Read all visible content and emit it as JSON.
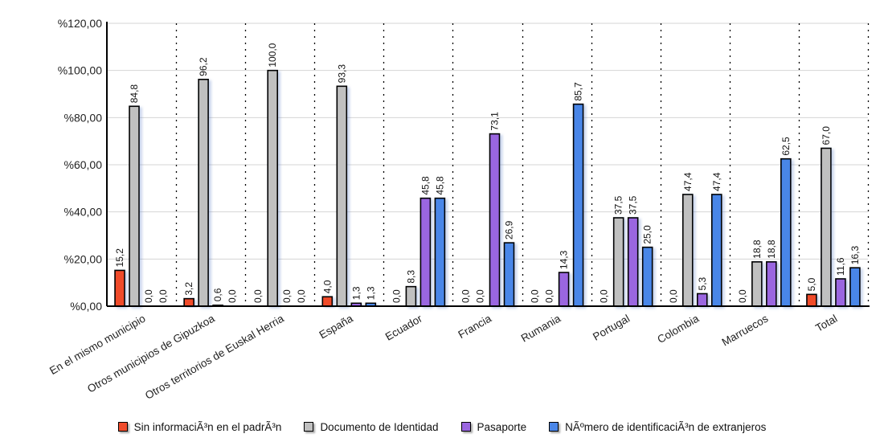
{
  "chart_data": {
    "type": "bar",
    "title": "",
    "xlabel": "",
    "ylabel": "",
    "ylim": [
      0,
      120
    ],
    "yticks": [
      "%0,00",
      "%20,00",
      "%40,00",
      "%60,00",
      "%80,00",
      "%100,00",
      "%120,00"
    ],
    "grid": true,
    "legend_position": "right",
    "categories": [
      "En el mismo municipio",
      "Otros municipios de Gipuzkoa",
      "Otros territorios de Euskal Herria",
      "España",
      "Ecuador",
      "Francia",
      "Rumania",
      "Portugal",
      "Colombia",
      "Marruecos",
      "Total"
    ],
    "series": [
      {
        "name": "Sin informaciÃ³n en el padrÃ³n",
        "color": "#f04c2c",
        "values": [
          15.2,
          3.2,
          0.0,
          4.0,
          0.0,
          0.0,
          0.0,
          0.0,
          0.0,
          0.0,
          5.0
        ]
      },
      {
        "name": "Documento de Identidad",
        "color": "#c0c0c0",
        "values": [
          84.8,
          96.2,
          100.0,
          93.3,
          8.3,
          0.0,
          0.0,
          37.5,
          47.4,
          18.8,
          67.0
        ]
      },
      {
        "name": "Pasaporte",
        "color": "#9a66e0",
        "values": [
          0.0,
          0.6,
          0.0,
          1.3,
          45.8,
          73.1,
          14.3,
          37.5,
          5.3,
          18.8,
          11.6
        ]
      },
      {
        "name": "NÃºmero de identificaciÃ³n de extranjeros",
        "color": "#4a86e8",
        "values": [
          0.0,
          0.0,
          0.0,
          1.3,
          45.8,
          26.9,
          85.7,
          25.0,
          47.4,
          62.5,
          16.3
        ]
      }
    ]
  }
}
